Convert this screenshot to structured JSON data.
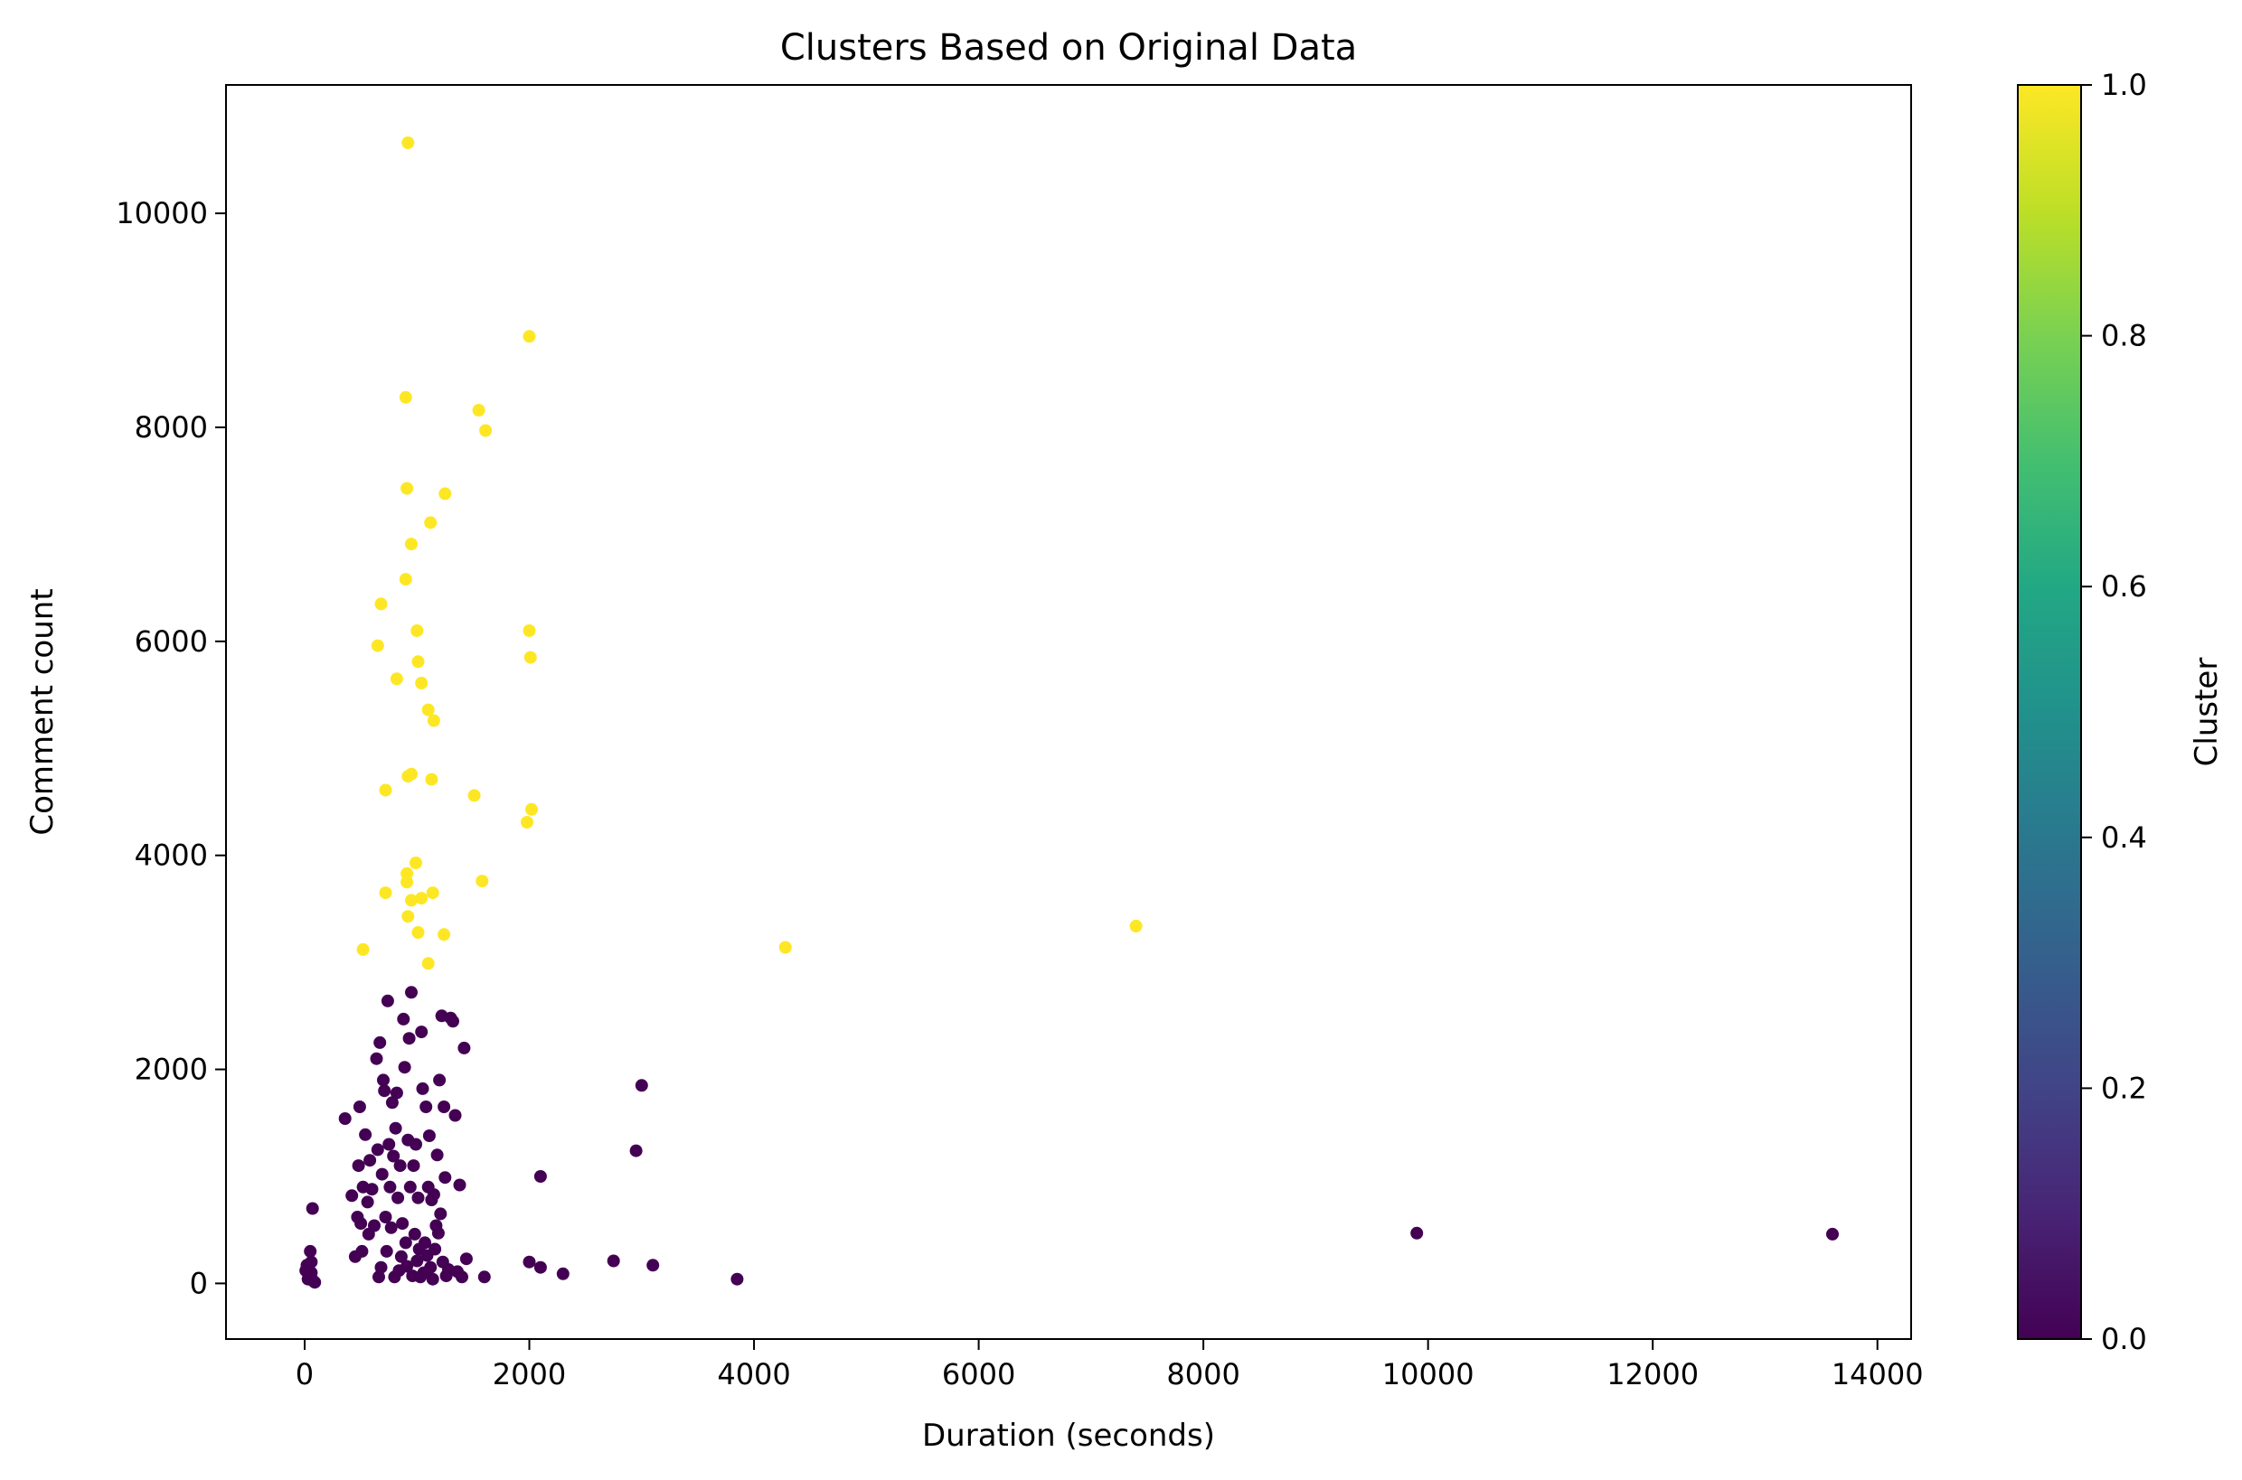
{
  "chart_data": {
    "type": "scatter",
    "title": "Clusters Based on Original Data",
    "xlabel": "Duration (seconds)",
    "ylabel": "Comment count",
    "xlim": [
      -700,
      14300
    ],
    "ylim": [
      -520,
      11200
    ],
    "xticks": [
      0,
      2000,
      4000,
      6000,
      8000,
      10000,
      12000,
      14000
    ],
    "yticks": [
      0,
      2000,
      4000,
      6000,
      8000,
      10000
    ],
    "grid": false,
    "colorbar": {
      "label": "Cluster",
      "range": [
        0,
        1
      ],
      "ticks": [
        "0.0",
        "0.2",
        "0.4",
        "0.6",
        "0.8",
        "1.0"
      ],
      "colormap": "viridis"
    },
    "series": [
      {
        "cluster": 0,
        "color": "#440154",
        "points": [
          [
            30,
            40
          ],
          [
            60,
            100
          ],
          [
            80,
            20
          ],
          [
            20,
            170
          ],
          [
            50,
            300
          ],
          [
            70,
            700
          ],
          [
            40,
            60
          ],
          [
            90,
            10
          ],
          [
            10,
            120
          ],
          [
            60,
            200
          ],
          [
            360,
            1540
          ],
          [
            420,
            820
          ],
          [
            450,
            250
          ],
          [
            470,
            620
          ],
          [
            480,
            1100
          ],
          [
            490,
            1650
          ],
          [
            500,
            560
          ],
          [
            510,
            300
          ],
          [
            520,
            900
          ],
          [
            540,
            1390
          ],
          [
            560,
            760
          ],
          [
            570,
            460
          ],
          [
            580,
            1150
          ],
          [
            600,
            880
          ],
          [
            620,
            540
          ],
          [
            640,
            2100
          ],
          [
            650,
            1250
          ],
          [
            660,
            60
          ],
          [
            670,
            2250
          ],
          [
            680,
            150
          ],
          [
            690,
            1020
          ],
          [
            700,
            1900
          ],
          [
            710,
            1800
          ],
          [
            720,
            620
          ],
          [
            730,
            300
          ],
          [
            740,
            2640
          ],
          [
            750,
            1300
          ],
          [
            760,
            900
          ],
          [
            770,
            520
          ],
          [
            780,
            1690
          ],
          [
            790,
            1190
          ],
          [
            800,
            60
          ],
          [
            810,
            1450
          ],
          [
            820,
            1780
          ],
          [
            830,
            800
          ],
          [
            840,
            120
          ],
          [
            850,
            1100
          ],
          [
            860,
            250
          ],
          [
            870,
            560
          ],
          [
            880,
            2470
          ],
          [
            890,
            2020
          ],
          [
            900,
            380
          ],
          [
            910,
            160
          ],
          [
            920,
            1340
          ],
          [
            930,
            2290
          ],
          [
            940,
            900
          ],
          [
            950,
            2720
          ],
          [
            960,
            70
          ],
          [
            970,
            1100
          ],
          [
            980,
            460
          ],
          [
            990,
            1300
          ],
          [
            1000,
            210
          ],
          [
            1010,
            800
          ],
          [
            1020,
            320
          ],
          [
            1030,
            60
          ],
          [
            1040,
            2350
          ],
          [
            1050,
            1820
          ],
          [
            1060,
            100
          ],
          [
            1070,
            380
          ],
          [
            1080,
            1650
          ],
          [
            1090,
            260
          ],
          [
            1100,
            900
          ],
          [
            1110,
            1380
          ],
          [
            1120,
            150
          ],
          [
            1130,
            780
          ],
          [
            1140,
            40
          ],
          [
            1150,
            830
          ],
          [
            1160,
            320
          ],
          [
            1170,
            540
          ],
          [
            1180,
            1200
          ],
          [
            1190,
            470
          ],
          [
            1200,
            1900
          ],
          [
            1210,
            650
          ],
          [
            1220,
            2500
          ],
          [
            1230,
            200
          ],
          [
            1240,
            1650
          ],
          [
            1250,
            990
          ],
          [
            1260,
            70
          ],
          [
            1280,
            130
          ],
          [
            1300,
            2480
          ],
          [
            1320,
            2450
          ],
          [
            1340,
            1570
          ],
          [
            1360,
            110
          ],
          [
            1380,
            920
          ],
          [
            1400,
            60
          ],
          [
            1420,
            2200
          ],
          [
            1440,
            230
          ],
          [
            1600,
            60
          ],
          [
            2000,
            200
          ],
          [
            2100,
            150
          ],
          [
            2300,
            90
          ],
          [
            2100,
            1000
          ],
          [
            2750,
            210
          ],
          [
            2950,
            1240
          ],
          [
            3000,
            1850
          ],
          [
            3100,
            170
          ],
          [
            3850,
            40
          ],
          [
            9900,
            470
          ],
          [
            13600,
            460
          ]
        ]
      },
      {
        "cluster": 1,
        "color": "#fde725",
        "points": [
          [
            920,
            10660
          ],
          [
            2000,
            8850
          ],
          [
            900,
            8280
          ],
          [
            1550,
            8160
          ],
          [
            1610,
            7970
          ],
          [
            910,
            7430
          ],
          [
            1250,
            7380
          ],
          [
            1120,
            7110
          ],
          [
            950,
            6910
          ],
          [
            680,
            6350
          ],
          [
            900,
            6580
          ],
          [
            1000,
            6100
          ],
          [
            2000,
            6100
          ],
          [
            650,
            5960
          ],
          [
            1010,
            5810
          ],
          [
            2010,
            5850
          ],
          [
            820,
            5650
          ],
          [
            1040,
            5610
          ],
          [
            1100,
            5360
          ],
          [
            1150,
            5260
          ],
          [
            920,
            4740
          ],
          [
            950,
            4760
          ],
          [
            1130,
            4710
          ],
          [
            1510,
            4560
          ],
          [
            720,
            4610
          ],
          [
            2020,
            4430
          ],
          [
            1980,
            4310
          ],
          [
            990,
            3930
          ],
          [
            910,
            3830
          ],
          [
            910,
            3750
          ],
          [
            1580,
            3760
          ],
          [
            720,
            3650
          ],
          [
            1140,
            3650
          ],
          [
            950,
            3580
          ],
          [
            1040,
            3600
          ],
          [
            920,
            3430
          ],
          [
            1240,
            3260
          ],
          [
            1010,
            3280
          ],
          [
            520,
            3120
          ],
          [
            1100,
            2990
          ],
          [
            4280,
            3140
          ],
          [
            7400,
            3340
          ]
        ]
      }
    ]
  }
}
